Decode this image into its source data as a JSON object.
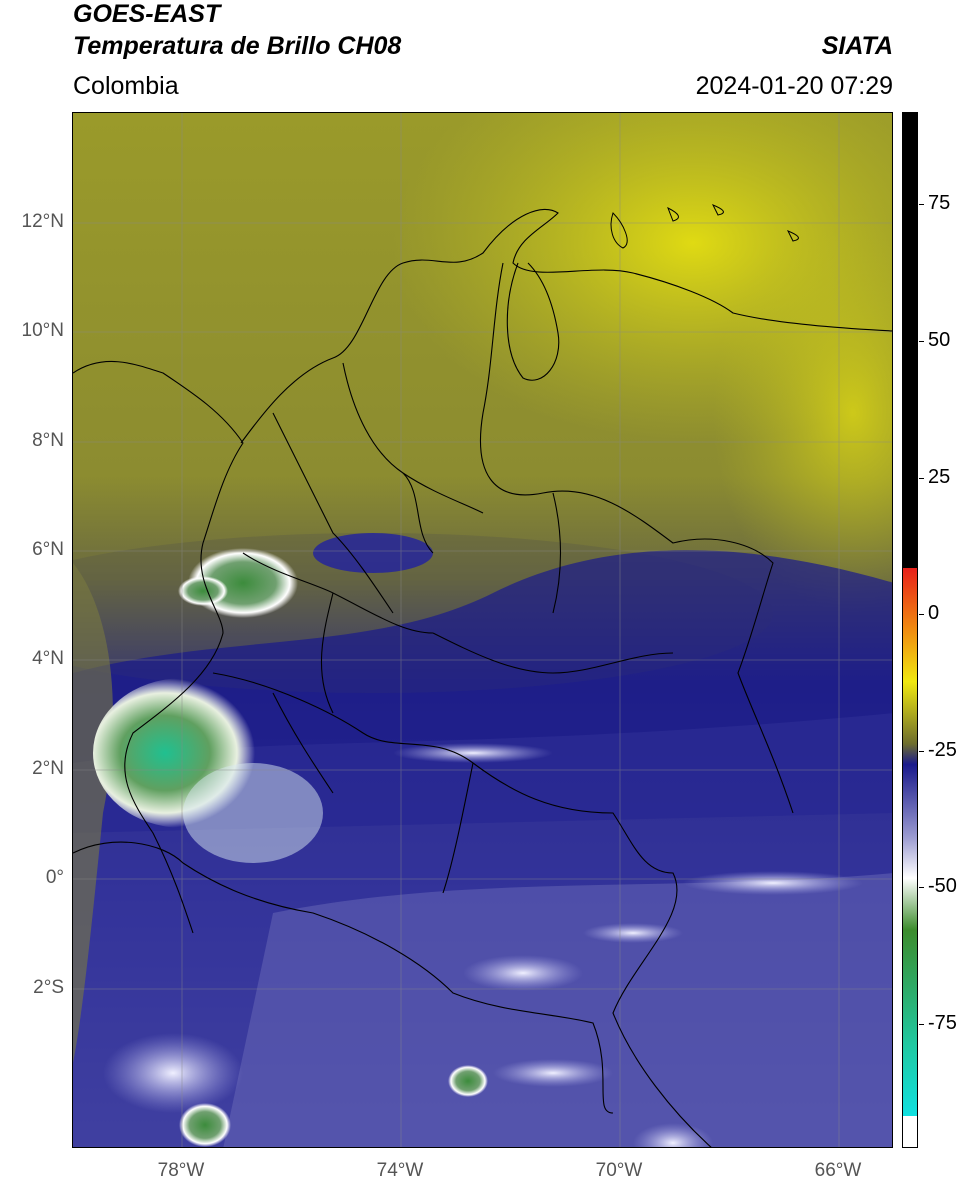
{
  "header": {
    "satellite": "GOES-EAST",
    "product": "Temperatura de Brillo CH08",
    "region": "Colombia",
    "source": "SIATA",
    "datetime": "2024-01-20 07:29"
  },
  "axes": {
    "lat_labels": [
      "12°N",
      "10°N",
      "8°N",
      "6°N",
      "4°N",
      "2°N",
      "0°",
      "2°S"
    ],
    "lon_labels": [
      "78°W",
      "74°W",
      "70°W",
      "66°W"
    ]
  },
  "colorbar": {
    "labels": [
      "75",
      "50",
      "25",
      "0",
      "-25",
      "-50",
      "-75"
    ],
    "colors": {
      "black": "#000000",
      "red": "#e8201a",
      "orange": "#f08c10",
      "yellow": "#f0e810",
      "olive": "#6e6e2c",
      "navy": "#1a1a8c",
      "lavender": "#9a9ad0",
      "white": "#ffffff",
      "green": "#3c8c2c",
      "teal": "#20c8a0",
      "cyan": "#10e0e0"
    }
  }
}
